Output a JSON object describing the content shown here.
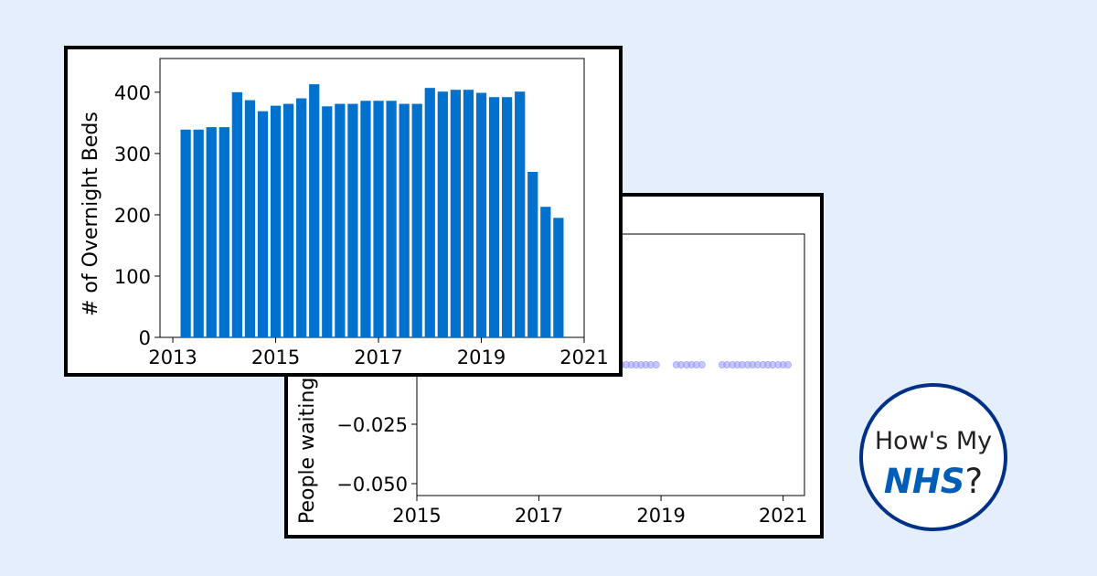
{
  "colors": {
    "background": "#e4eefd",
    "bar": "#0072ce",
    "scatter_point": "#9b9bff",
    "logo_ring": "#003087",
    "logo_nhs": "#005eb8"
  },
  "logo": {
    "line1": "How's My",
    "nhs": "NHS",
    "question": "?"
  },
  "chart_data": [
    {
      "type": "bar",
      "ylabel": "# of Overnight Beds",
      "xlim": [
        2012.75,
        2021.0
      ],
      "ylim": [
        0,
        455
      ],
      "grid": false,
      "x_ticks": [
        "2013",
        "2015",
        "2017",
        "2019",
        "2021"
      ],
      "y_ticks": [
        "0",
        "100",
        "200",
        "300",
        "400"
      ],
      "x": [
        2013.25,
        2013.5,
        2013.75,
        2014.0,
        2014.25,
        2014.5,
        2014.75,
        2015.0,
        2015.25,
        2015.5,
        2015.75,
        2016.0,
        2016.25,
        2016.5,
        2016.75,
        2017.0,
        2017.25,
        2017.5,
        2017.75,
        2018.0,
        2018.25,
        2018.5,
        2018.75,
        2019.0,
        2019.25,
        2019.5,
        2019.75,
        2020.0,
        2020.25,
        2020.5
      ],
      "values": [
        339,
        339,
        343,
        343,
        400,
        387,
        369,
        378,
        381,
        390,
        413,
        377,
        381,
        381,
        386,
        386,
        386,
        381,
        381,
        407,
        401,
        404,
        404,
        399,
        392,
        392,
        401,
        270,
        213,
        195
      ]
    },
    {
      "type": "scatter",
      "ylabel": "People waiting",
      "xlim": [
        2015.0,
        2021.35
      ],
      "ylim": [
        -0.055,
        0.055
      ],
      "grid": false,
      "x_ticks": [
        "2015",
        "2017",
        "2019",
        "2021"
      ],
      "y_ticks": [
        "−0.050",
        "−0.025"
      ],
      "x": [
        2015.1,
        2015.2,
        2015.3,
        2015.4,
        2015.5,
        2015.6,
        2015.7,
        2015.8,
        2015.9,
        2016.0,
        2016.1,
        2016.2,
        2016.3,
        2016.4,
        2016.5,
        2016.6,
        2016.7,
        2016.8,
        2016.9,
        2017.0,
        2017.1,
        2017.2,
        2017.3,
        2017.4,
        2017.5,
        2017.6,
        2017.7,
        2017.8,
        2017.9,
        2018.0,
        2018.1,
        2018.2,
        2018.35,
        2018.43,
        2018.51,
        2018.59,
        2018.67,
        2018.75,
        2018.83,
        2018.92,
        2019.25,
        2019.33,
        2019.42,
        2019.5,
        2019.58,
        2019.67,
        2020.0,
        2020.08,
        2020.17,
        2020.25,
        2020.33,
        2020.42,
        2020.5,
        2020.58,
        2020.67,
        2020.75,
        2020.83,
        2020.92,
        2021.0,
        2021.08
      ],
      "values": [
        0,
        0,
        0,
        0,
        0,
        0,
        0,
        0,
        0,
        0,
        0,
        0,
        0,
        0,
        0,
        0,
        0,
        0,
        0,
        0,
        0,
        0,
        0,
        0,
        0,
        0,
        0,
        0,
        0,
        0,
        0,
        0,
        0,
        0,
        0,
        0,
        0,
        0,
        0,
        0,
        0,
        0,
        0,
        0,
        0,
        0,
        0,
        0,
        0,
        0,
        0,
        0,
        0,
        0,
        0,
        0,
        0,
        0,
        0,
        0
      ]
    }
  ]
}
